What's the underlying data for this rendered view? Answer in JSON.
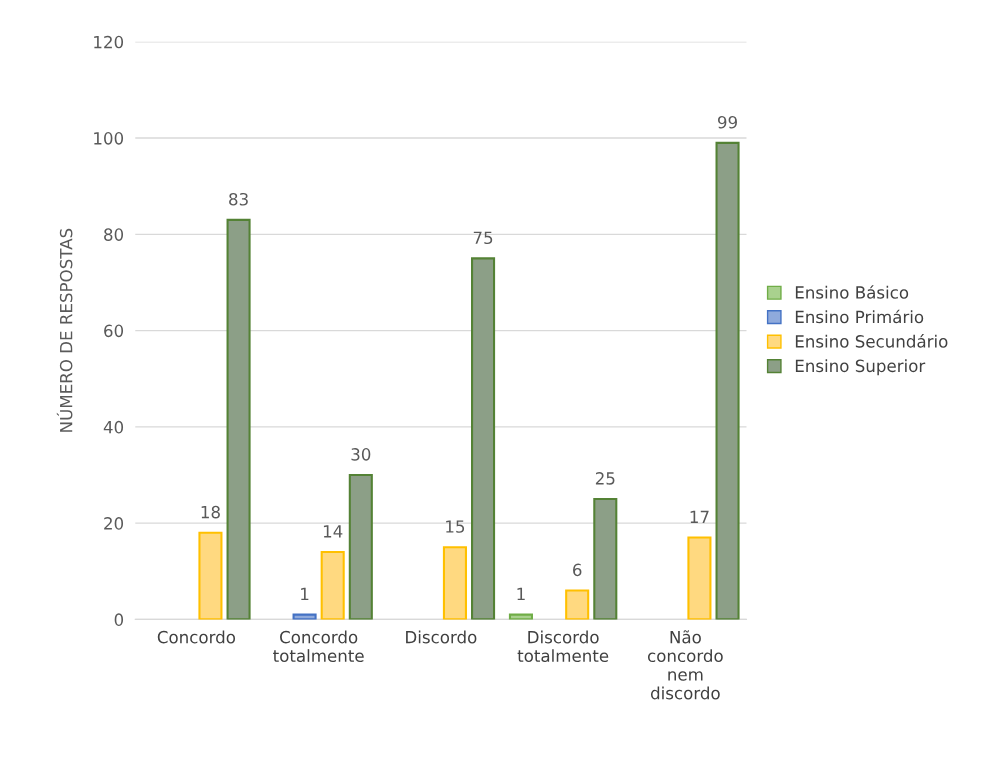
{
  "chart_data": {
    "type": "bar",
    "ylabel": "NÚMERO DE RESPOSTAS",
    "categories": [
      "Concordo",
      "Concordo\ntotalmente",
      "Discordo",
      "Discordo\ntotalmente",
      "Não\nconcordo\nnem\ndiscordo"
    ],
    "series": [
      {
        "name": "Ensino Básico",
        "color": "#a9d18e",
        "values": [
          null,
          null,
          null,
          1,
          null
        ]
      },
      {
        "name": "Ensino Primário",
        "color": "#8faadc",
        "values": [
          null,
          1,
          null,
          null,
          null
        ]
      },
      {
        "name": "Ensino Secundário",
        "color": "#ffd980",
        "values": [
          18,
          14,
          15,
          6,
          17
        ]
      },
      {
        "name": "Ensino Superior",
        "color": "#8c9f87",
        "values": [
          83,
          30,
          75,
          25,
          99
        ]
      }
    ],
    "ylim": [
      0,
      120
    ],
    "yticks": [
      0,
      20,
      40,
      60,
      80,
      100,
      120
    ],
    "grid": "y",
    "legend": "right",
    "data_labels": true
  }
}
